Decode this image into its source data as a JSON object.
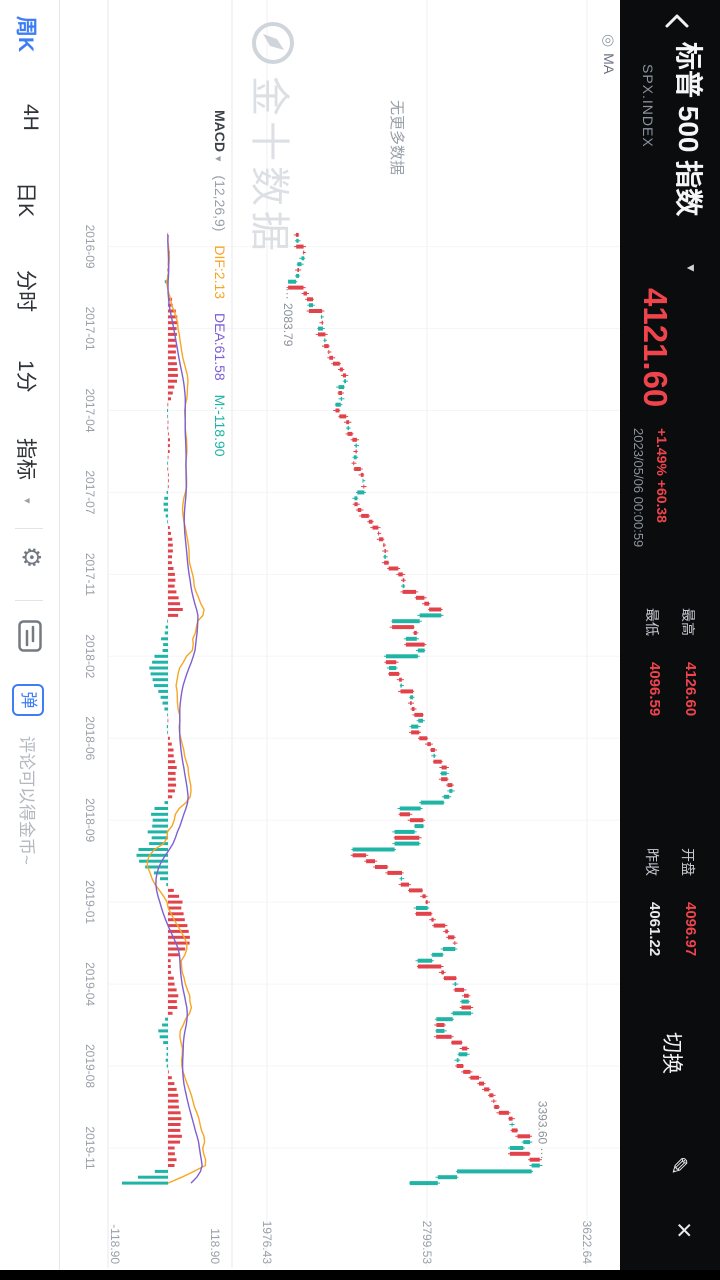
{
  "colors": {
    "up": "#e2434b",
    "down": "#1fb4a5",
    "accent": "#3d7df5",
    "axis_text": "#9aa0a8",
    "price_red": "#f0444c"
  },
  "icons": {
    "caret_down": "▼",
    "edit": "✎",
    "close": "×",
    "ma_settings": "◎",
    "macd_caret": "▾",
    "indicator_caret": "▾",
    "gear": "⚙"
  },
  "header": {
    "title": "标普 500 指数",
    "symbol": "SPX.INDEX",
    "price": "4121.60",
    "change": "+1.49% +60.38",
    "datetime": "2023/05/06 00:00:59",
    "stats": [
      {
        "label": "最高",
        "value": "4126.60",
        "tone": "up"
      },
      {
        "label": "最低",
        "value": "4096.59",
        "tone": "up"
      },
      {
        "label": "开盘",
        "value": "4096.97",
        "tone": "up"
      },
      {
        "label": "昨收",
        "value": "4061.22",
        "tone": "flat"
      }
    ],
    "switch_label": "切换"
  },
  "chart": {
    "ma_label": "MA",
    "no_more_data": "无更多数据",
    "watermark": "金十数据",
    "macd": {
      "name": "MACD",
      "params": "(12,26,9)",
      "dif": "DIF:2.13",
      "dea": "DEA:61.58",
      "m": "M:-118.90"
    }
  },
  "tabbar": {
    "tabs": [
      {
        "label": "周K",
        "active": true
      },
      {
        "label": "4H",
        "active": false
      },
      {
        "label": "日K",
        "active": false
      },
      {
        "label": "分时",
        "active": false
      },
      {
        "label": "1分",
        "active": false
      },
      {
        "label": "指标",
        "active": false
      }
    ],
    "danmu_label": "弹",
    "comment_placeholder": "评论可以得金币~"
  },
  "chart_data": {
    "type": "candlestick",
    "title": "标普 500 指数 SPX.INDEX 周K",
    "period": "周K",
    "first_open": 2125,
    "closes": [
      2139,
      2127,
      2165,
      2168,
      2154,
      2133,
      2141,
      2126,
      2085,
      2164,
      2182,
      2213,
      2192,
      2260,
      2258,
      2264,
      2239,
      2277,
      2271,
      2294,
      2297,
      2316,
      2351,
      2367,
      2383,
      2373,
      2344,
      2363,
      2356,
      2329,
      2349,
      2384,
      2399,
      2391,
      2416,
      2439,
      2432,
      2438,
      2423,
      2425,
      2459,
      2473,
      2472,
      2477,
      2441,
      2426,
      2443,
      2461,
      2500,
      2519,
      2549,
      2553,
      2575,
      2581,
      2588,
      2579,
      2602,
      2652,
      2675,
      2683,
      2674,
      2743,
      2786,
      2810,
      2873,
      2762,
      2620,
      2732,
      2747,
      2691,
      2787,
      2752,
      2588,
      2641,
      2604,
      2656,
      2670,
      2663,
      2728,
      2713,
      2721,
      2735,
      2779,
      2755,
      2718,
      2760,
      2801,
      2819,
      2840,
      2833,
      2875,
      2901,
      2872,
      2905,
      2930,
      2914,
      2886,
      2767,
      2659,
      2712,
      2781,
      2736,
      2633,
      2760,
      2633,
      2417,
      2486,
      2532,
      2596,
      2671,
      2665,
      2707,
      2776,
      2793,
      2803,
      2743,
      2822,
      2834,
      2893,
      2907,
      2940,
      2945,
      2881,
      2826,
      2752,
      2873,
      2887,
      2950,
      2942,
      2990,
      3014,
      2977,
      3026,
      2932,
      2848,
      2889,
      2847,
      2926,
      2979,
      3007,
      2962,
      2952,
      2986,
      3023,
      3067,
      3093,
      3120,
      3141,
      3146,
      3169,
      3221,
      3240,
      3235,
      3265,
      3330,
      3295,
      3226,
      3328,
      3380,
      3338,
      2954,
      2855,
      2711
    ],
    "x_tick_labels": [
      "2016-09",
      "2017-01",
      "2017-04",
      "2017-07",
      "2017-11",
      "2018-02",
      "2018-06",
      "2018-09",
      "2019-01",
      "2019-04",
      "2019-08",
      "2019-11"
    ],
    "x_tick_indices": [
      2,
      16,
      30,
      44,
      58,
      72,
      86,
      100,
      114,
      128,
      142,
      156
    ],
    "y_axis_ticks": [
      3622.64,
      2799.53,
      1976.43
    ],
    "min_low": 2083.79,
    "max_high": 3393.6,
    "macd_params": [
      12,
      26,
      9
    ],
    "macd_axis": {
      "max": "118.90",
      "min": "-118.90"
    }
  }
}
